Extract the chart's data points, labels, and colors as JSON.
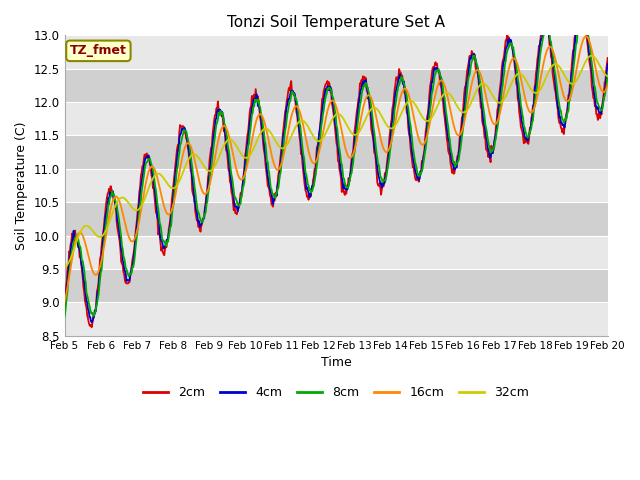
{
  "title": "Tonzi Soil Temperature Set A",
  "xlabel": "Time",
  "ylabel": "Soil Temperature (C)",
  "annotation": "TZ_fmet",
  "ylim": [
    8.5,
    13.0
  ],
  "yticks": [
    8.5,
    9.0,
    9.5,
    10.0,
    10.5,
    11.0,
    11.5,
    12.0,
    12.5,
    13.0
  ],
  "legend_labels": [
    "2cm",
    "4cm",
    "8cm",
    "16cm",
    "32cm"
  ],
  "colors": [
    "#dd0000",
    "#0000cc",
    "#00aa00",
    "#ff8800",
    "#cccc00"
  ],
  "plot_bg": "#dcdcdc",
  "fig_bg": "#ffffff",
  "xtick_labels": [
    "Feb 5",
    "Feb 6",
    "Feb 7",
    "Feb 8",
    "Feb 9",
    "Feb 10",
    "Feb 11",
    "Feb 12",
    "Feb 13",
    "Feb 14",
    "Feb 15",
    "Feb 16",
    "Feb 17",
    "Feb 18",
    "Feb 19",
    "Feb 20"
  ],
  "n_points": 720,
  "days": 15,
  "annotation_color": "#8b0000",
  "annotation_edge": "#888800",
  "annotation_bg": "#ffffcc"
}
